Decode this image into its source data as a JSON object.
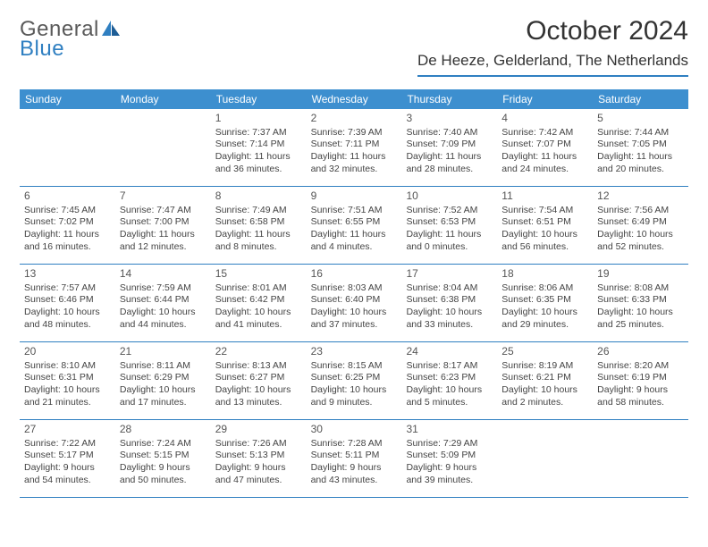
{
  "logo": {
    "word1": "General",
    "word2": "Blue"
  },
  "title": "October 2024",
  "location": "De Heeze, Gelderland, The Netherlands",
  "colors": {
    "header_bar": "#3d8fcf",
    "accent_line": "#2f7fc1",
    "text": "#333333",
    "logo_gray": "#5a5a5a",
    "logo_blue": "#2f7fc1"
  },
  "daysOfWeek": [
    "Sunday",
    "Monday",
    "Tuesday",
    "Wednesday",
    "Thursday",
    "Friday",
    "Saturday"
  ],
  "weeks": [
    [
      null,
      null,
      {
        "n": "1",
        "sr": "7:37 AM",
        "ss": "7:14 PM",
        "dl": "11 hours and 36 minutes."
      },
      {
        "n": "2",
        "sr": "7:39 AM",
        "ss": "7:11 PM",
        "dl": "11 hours and 32 minutes."
      },
      {
        "n": "3",
        "sr": "7:40 AM",
        "ss": "7:09 PM",
        "dl": "11 hours and 28 minutes."
      },
      {
        "n": "4",
        "sr": "7:42 AM",
        "ss": "7:07 PM",
        "dl": "11 hours and 24 minutes."
      },
      {
        "n": "5",
        "sr": "7:44 AM",
        "ss": "7:05 PM",
        "dl": "11 hours and 20 minutes."
      }
    ],
    [
      {
        "n": "6",
        "sr": "7:45 AM",
        "ss": "7:02 PM",
        "dl": "11 hours and 16 minutes."
      },
      {
        "n": "7",
        "sr": "7:47 AM",
        "ss": "7:00 PM",
        "dl": "11 hours and 12 minutes."
      },
      {
        "n": "8",
        "sr": "7:49 AM",
        "ss": "6:58 PM",
        "dl": "11 hours and 8 minutes."
      },
      {
        "n": "9",
        "sr": "7:51 AM",
        "ss": "6:55 PM",
        "dl": "11 hours and 4 minutes."
      },
      {
        "n": "10",
        "sr": "7:52 AM",
        "ss": "6:53 PM",
        "dl": "11 hours and 0 minutes."
      },
      {
        "n": "11",
        "sr": "7:54 AM",
        "ss": "6:51 PM",
        "dl": "10 hours and 56 minutes."
      },
      {
        "n": "12",
        "sr": "7:56 AM",
        "ss": "6:49 PM",
        "dl": "10 hours and 52 minutes."
      }
    ],
    [
      {
        "n": "13",
        "sr": "7:57 AM",
        "ss": "6:46 PM",
        "dl": "10 hours and 48 minutes."
      },
      {
        "n": "14",
        "sr": "7:59 AM",
        "ss": "6:44 PM",
        "dl": "10 hours and 44 minutes."
      },
      {
        "n": "15",
        "sr": "8:01 AM",
        "ss": "6:42 PM",
        "dl": "10 hours and 41 minutes."
      },
      {
        "n": "16",
        "sr": "8:03 AM",
        "ss": "6:40 PM",
        "dl": "10 hours and 37 minutes."
      },
      {
        "n": "17",
        "sr": "8:04 AM",
        "ss": "6:38 PM",
        "dl": "10 hours and 33 minutes."
      },
      {
        "n": "18",
        "sr": "8:06 AM",
        "ss": "6:35 PM",
        "dl": "10 hours and 29 minutes."
      },
      {
        "n": "19",
        "sr": "8:08 AM",
        "ss": "6:33 PM",
        "dl": "10 hours and 25 minutes."
      }
    ],
    [
      {
        "n": "20",
        "sr": "8:10 AM",
        "ss": "6:31 PM",
        "dl": "10 hours and 21 minutes."
      },
      {
        "n": "21",
        "sr": "8:11 AM",
        "ss": "6:29 PM",
        "dl": "10 hours and 17 minutes."
      },
      {
        "n": "22",
        "sr": "8:13 AM",
        "ss": "6:27 PM",
        "dl": "10 hours and 13 minutes."
      },
      {
        "n": "23",
        "sr": "8:15 AM",
        "ss": "6:25 PM",
        "dl": "10 hours and 9 minutes."
      },
      {
        "n": "24",
        "sr": "8:17 AM",
        "ss": "6:23 PM",
        "dl": "10 hours and 5 minutes."
      },
      {
        "n": "25",
        "sr": "8:19 AM",
        "ss": "6:21 PM",
        "dl": "10 hours and 2 minutes."
      },
      {
        "n": "26",
        "sr": "8:20 AM",
        "ss": "6:19 PM",
        "dl": "9 hours and 58 minutes."
      }
    ],
    [
      {
        "n": "27",
        "sr": "7:22 AM",
        "ss": "5:17 PM",
        "dl": "9 hours and 54 minutes."
      },
      {
        "n": "28",
        "sr": "7:24 AM",
        "ss": "5:15 PM",
        "dl": "9 hours and 50 minutes."
      },
      {
        "n": "29",
        "sr": "7:26 AM",
        "ss": "5:13 PM",
        "dl": "9 hours and 47 minutes."
      },
      {
        "n": "30",
        "sr": "7:28 AM",
        "ss": "5:11 PM",
        "dl": "9 hours and 43 minutes."
      },
      {
        "n": "31",
        "sr": "7:29 AM",
        "ss": "5:09 PM",
        "dl": "9 hours and 39 minutes."
      },
      null,
      null
    ]
  ],
  "labels": {
    "sunrise": "Sunrise:",
    "sunset": "Sunset:",
    "daylight": "Daylight:"
  }
}
